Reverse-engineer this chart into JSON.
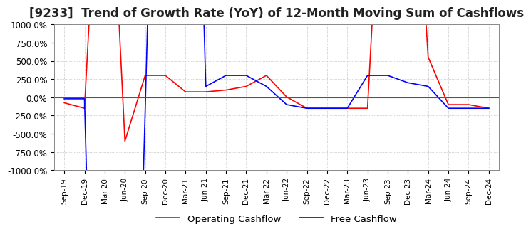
{
  "title": "[9233]  Trend of Growth Rate (YoY) of 12-Month Moving Sum of Cashflows",
  "title_fontsize": 12,
  "ylim": [
    -1000,
    1000
  ],
  "yticks": [
    -1000,
    -750,
    -500,
    -250,
    0,
    250,
    500,
    750,
    1000
  ],
  "ytick_labels": [
    "-1000.0%",
    "-750.0%",
    "-500.0%",
    "-250.0%",
    "0.0%",
    "250.0%",
    "500.0%",
    "750.0%",
    "1000.0%"
  ],
  "background_color": "#ffffff",
  "grid_color": "#aaaaaa",
  "operating_color": "#ff0000",
  "free_color": "#0000ff",
  "legend_labels": [
    "Operating Cashflow",
    "Free Cashflow"
  ],
  "x_labels": [
    "Sep-19",
    "Dec-19",
    "Mar-20",
    "Jun-20",
    "Sep-20",
    "Dec-20",
    "Mar-21",
    "Jun-21",
    "Sep-21",
    "Dec-21",
    "Mar-22",
    "Jun-22",
    "Sep-22",
    "Dec-22",
    "Mar-23",
    "Jun-23",
    "Sep-23",
    "Dec-23",
    "Mar-24",
    "Jun-24",
    "Sep-24",
    "Dec-24"
  ],
  "operating_cashflow": [
    -75,
    -150,
    5000,
    -600,
    300,
    300,
    75,
    75,
    100,
    150,
    300,
    5,
    -150,
    -150,
    -150,
    -150,
    5000,
    5000,
    550,
    -100,
    -100,
    -150
  ],
  "free_cashflow": [
    -20,
    -20,
    -10000,
    -10000,
    -200,
    10000,
    10000,
    150,
    300,
    300,
    150,
    -100,
    -150,
    -150,
    -150,
    300,
    300,
    200,
    150,
    -150,
    -150,
    -150
  ]
}
